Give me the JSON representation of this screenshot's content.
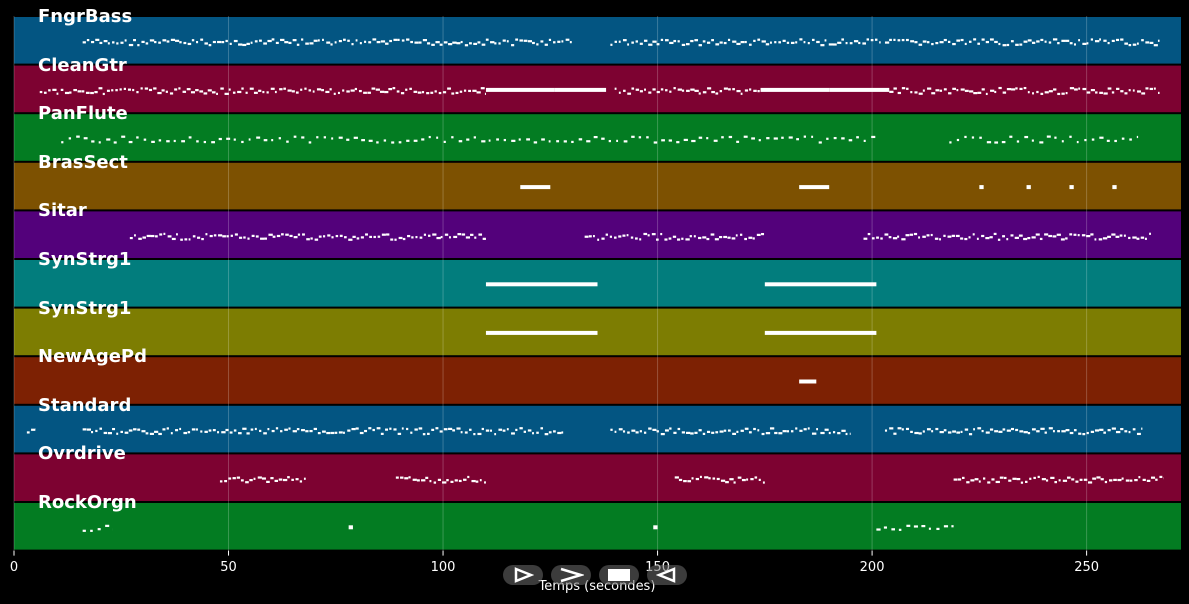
{
  "chart_data": {
    "type": "piano-roll",
    "title": "",
    "xlabel": "Temps (secondes)",
    "ylabel": "",
    "xlim": [
      0,
      272
    ],
    "xticks": [
      0,
      50,
      100,
      150,
      200,
      250
    ],
    "grid": true,
    "tracks": [
      {
        "name": "FngrBass",
        "color": "#035582",
        "segments": [
          {
            "start": 16,
            "end": 130,
            "density": "dense"
          },
          {
            "start": 139,
            "end": 202,
            "density": "dense"
          },
          {
            "start": 203,
            "end": 267,
            "density": "dense"
          }
        ]
      },
      {
        "name": "CleanGtr",
        "color": "#7d0231",
        "segments": [
          {
            "start": 6,
            "end": 110,
            "density": "dense"
          },
          {
            "start": 110,
            "end": 126,
            "density": "sustained"
          },
          {
            "start": 126,
            "end": 138,
            "density": "sustained"
          },
          {
            "start": 140,
            "end": 174,
            "density": "dense"
          },
          {
            "start": 174,
            "end": 190,
            "density": "sustained"
          },
          {
            "start": 190,
            "end": 204,
            "density": "sustained"
          },
          {
            "start": 204,
            "end": 267,
            "density": "dense"
          }
        ]
      },
      {
        "name": "PanFlute",
        "color": "#037c22",
        "segments": [
          {
            "start": 11,
            "end": 201,
            "density": "sparse"
          },
          {
            "start": 218,
            "end": 262,
            "density": "sparse"
          }
        ]
      },
      {
        "name": "BrasSect",
        "color": "#7d5101",
        "segments": [
          {
            "start": 118,
            "end": 125,
            "density": "short"
          },
          {
            "start": 183,
            "end": 190,
            "density": "short"
          },
          {
            "start": 225,
            "end": 226,
            "density": "short"
          },
          {
            "start": 236,
            "end": 237,
            "density": "short"
          },
          {
            "start": 246,
            "end": 247,
            "density": "short"
          },
          {
            "start": 256,
            "end": 257,
            "density": "short"
          }
        ]
      },
      {
        "name": "Sitar",
        "color": "#53017b",
        "segments": [
          {
            "start": 27,
            "end": 110,
            "density": "dense"
          },
          {
            "start": 133,
            "end": 175,
            "density": "dense"
          },
          {
            "start": 198,
            "end": 265,
            "density": "dense"
          }
        ]
      },
      {
        "name": "SynStrg1",
        "color": "#027d7d",
        "segments": [
          {
            "start": 110,
            "end": 136,
            "density": "sustained"
          },
          {
            "start": 175,
            "end": 201,
            "density": "sustained"
          }
        ]
      },
      {
        "name": "SynStrg1",
        "color": "#7d7d02",
        "segments": [
          {
            "start": 110,
            "end": 136,
            "density": "sustained"
          },
          {
            "start": 175,
            "end": 201,
            "density": "sustained"
          }
        ]
      },
      {
        "name": "NewAgePd",
        "color": "#7d2103",
        "segments": [
          {
            "start": 183,
            "end": 187,
            "density": "short"
          }
        ]
      },
      {
        "name": "Standard",
        "color": "#035582",
        "segments": [
          {
            "start": 3,
            "end": 5,
            "density": "dense"
          },
          {
            "start": 16,
            "end": 128,
            "density": "dense"
          },
          {
            "start": 139,
            "end": 195,
            "density": "dense"
          },
          {
            "start": 203,
            "end": 263,
            "density": "dense"
          }
        ]
      },
      {
        "name": "Ovrdrive",
        "color": "#7d0231",
        "segments": [
          {
            "start": 48,
            "end": 68,
            "density": "dense"
          },
          {
            "start": 89,
            "end": 110,
            "density": "dense"
          },
          {
            "start": 154,
            "end": 175,
            "density": "dense"
          },
          {
            "start": 219,
            "end": 268,
            "density": "dense"
          }
        ]
      },
      {
        "name": "RockOrgn",
        "color": "#037c22",
        "segments": [
          {
            "start": 16,
            "end": 23,
            "density": "sparse"
          },
          {
            "start": 78,
            "end": 79,
            "density": "short"
          },
          {
            "start": 149,
            "end": 150,
            "density": "short"
          },
          {
            "start": 201,
            "end": 219,
            "density": "sparse"
          }
        ]
      }
    ]
  },
  "controls": [
    {
      "icon": "play-outline-icon",
      "glyph": "▷"
    },
    {
      "icon": "forward-icon",
      "glyph": ">"
    },
    {
      "icon": "stop-icon",
      "glyph": "■"
    },
    {
      "icon": "rewind-icon",
      "glyph": "◁"
    }
  ]
}
